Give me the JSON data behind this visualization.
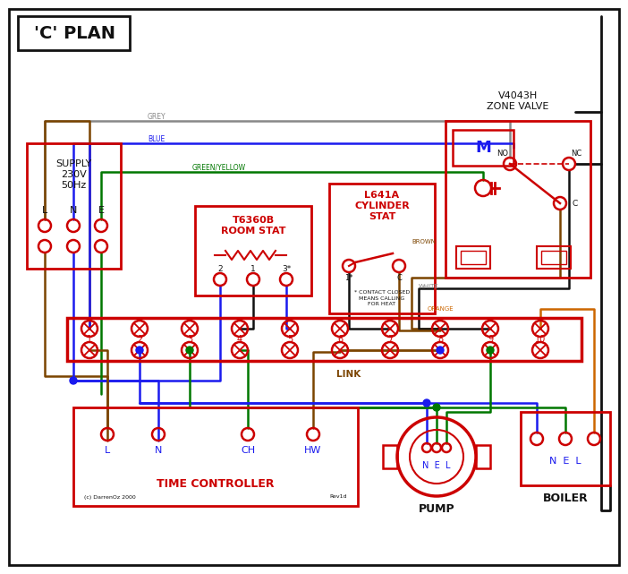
{
  "bg": "#ffffff",
  "red": "#cc0000",
  "blue": "#1a1aee",
  "green": "#007700",
  "brown": "#7b4400",
  "grey": "#888888",
  "orange": "#cc6600",
  "black": "#111111",
  "title": "'C' PLAN",
  "tc_label": "TIME CONTROLLER",
  "pump_label": "PUMP",
  "boiler_label": "BOILER",
  "contact_note": "* CONTACT CLOSED\nMEANS CALLING\nFOR HEAT"
}
